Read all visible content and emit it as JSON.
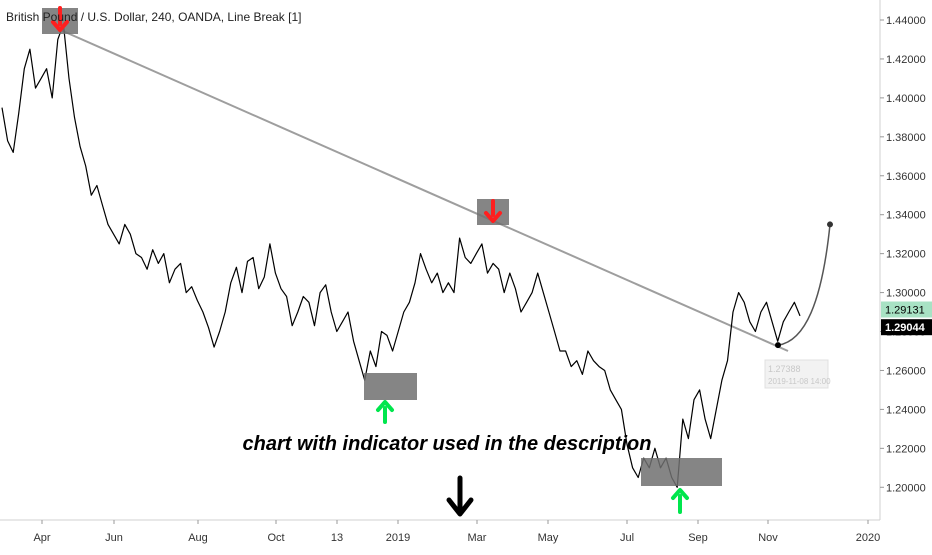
{
  "header": {
    "title": "British Pound / U.S. Dollar, 240, OANDA, Line Break [1]"
  },
  "annotation": {
    "text": "chart with indicator used in the description"
  },
  "tooltip": {
    "price": "1.27388",
    "datetime": "2019-11-08 14:00"
  },
  "price_tags": {
    "last_close": "1.29131",
    "crosshair": "1.29044"
  },
  "colors": {
    "price_line": "#000000",
    "trendline": "#9e9e9e",
    "box_fill": "#707070",
    "arrow_down": "#ff1f1f",
    "arrow_up": "#00e64d",
    "tag_green_bg": "#a8e2c4",
    "tag_black_bg": "#000000",
    "axis_text": "#333333"
  },
  "chart_data": {
    "type": "line",
    "title": "British Pound / U.S. Dollar, 240, OANDA, Line Break [1]",
    "xlabel": "",
    "ylabel": "",
    "ylim": [
      1.18,
      1.45
    ],
    "x_ticks": [
      "Apr",
      "Jun",
      "Aug",
      "Oct",
      "13",
      "2019",
      "Mar",
      "May",
      "Jul",
      "Sep",
      "Nov",
      "2020"
    ],
    "y_ticks": [
      "1.44000",
      "1.42000",
      "1.40000",
      "1.38000",
      "1.36000",
      "1.34000",
      "1.32000",
      "1.30000",
      "1.28000",
      "1.26000",
      "1.24000",
      "1.22000",
      "1.20000"
    ],
    "series": [
      {
        "values": [
          1.395,
          1.378,
          1.372,
          1.392,
          1.415,
          1.425,
          1.405,
          1.41,
          1.415,
          1.4,
          1.43,
          1.438,
          1.41,
          1.39,
          1.375,
          1.365,
          1.35,
          1.355,
          1.345,
          1.335,
          1.33,
          1.325,
          1.335,
          1.33,
          1.32,
          1.318,
          1.312,
          1.322,
          1.315,
          1.32,
          1.305,
          1.312,
          1.315,
          1.3,
          1.303,
          1.296,
          1.29,
          1.282,
          1.272,
          1.28,
          1.29,
          1.305,
          1.313,
          1.3,
          1.316,
          1.318,
          1.302,
          1.308,
          1.325,
          1.31,
          1.302,
          1.298,
          1.283,
          1.29,
          1.298,
          1.295,
          1.283,
          1.3,
          1.304,
          1.29,
          1.28,
          1.285,
          1.29,
          1.275,
          1.265,
          1.255,
          1.27,
          1.262,
          1.28,
          1.278,
          1.27,
          1.28,
          1.29,
          1.295,
          1.305,
          1.32,
          1.312,
          1.305,
          1.31,
          1.3,
          1.305,
          1.3,
          1.328,
          1.318,
          1.315,
          1.32,
          1.325,
          1.31,
          1.315,
          1.312,
          1.3,
          1.31,
          1.302,
          1.29,
          1.295,
          1.3,
          1.31,
          1.3,
          1.29,
          1.28,
          1.27,
          1.27,
          1.262,
          1.265,
          1.258,
          1.27,
          1.265,
          1.262,
          1.26,
          1.25,
          1.245,
          1.24,
          1.222,
          1.21,
          1.205,
          1.215,
          1.21,
          1.22,
          1.21,
          1.215,
          1.205,
          1.2,
          1.235,
          1.225,
          1.245,
          1.25,
          1.235,
          1.225,
          1.24,
          1.255,
          1.265,
          1.29,
          1.3,
          1.295,
          1.285,
          1.28,
          1.29,
          1.295,
          1.285,
          1.275,
          1.285,
          1.29,
          1.295,
          1.288
        ]
      }
    ],
    "trendline": {
      "start": {
        "x": "Apr 2018",
        "y": 1.435
      },
      "end": {
        "x": "Nov 2019",
        "y": 1.27
      }
    },
    "projection_target": 1.335,
    "grid": false,
    "legend": "none"
  }
}
